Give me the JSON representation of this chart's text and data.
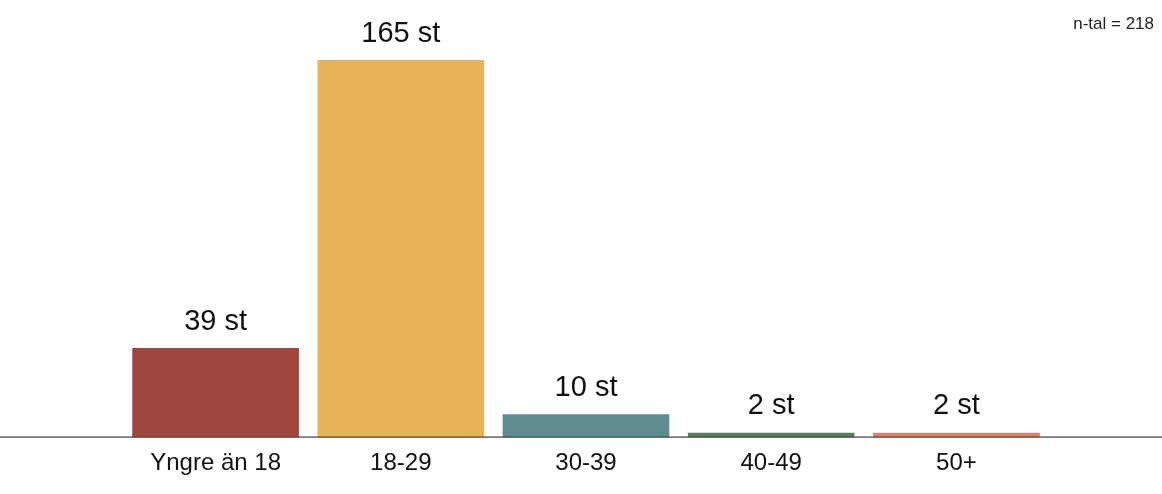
{
  "chart_data": {
    "type": "bar",
    "categories": [
      "Yngre än 18",
      "18-29",
      "30-39",
      "40-49",
      "50+"
    ],
    "values": [
      39,
      165,
      10,
      2,
      2
    ],
    "colors": [
      "#a0463f",
      "#e8b45a",
      "#5f8d8f",
      "#5a7c5a",
      "#d9846a"
    ],
    "value_labels": [
      "39 st",
      "165 st",
      "10 st",
      "2 st",
      "2 st"
    ],
    "annotations": [
      "n-tal = 218"
    ],
    "grid": false,
    "legend": false,
    "tick_labels": "x"
  }
}
